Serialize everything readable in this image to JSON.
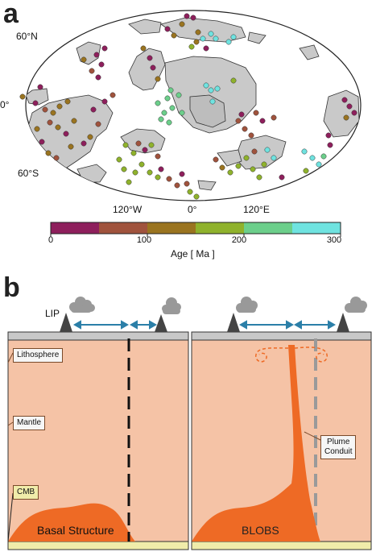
{
  "panel_a": {
    "letter": "a",
    "lat_labels": [
      "60°N",
      "0°",
      "60°S"
    ],
    "lon_labels": [
      "120°W",
      "0°",
      "120°E"
    ],
    "colorbar": {
      "ticks": [
        "0",
        "100",
        "200",
        "300"
      ],
      "title": "Age [ Ma ]",
      "colors": [
        "#8e1f5c",
        "#a0533d",
        "#9a7420",
        "#8fb22c",
        "#6ccf8b",
        "#6fe3e0"
      ]
    },
    "land_color": "#c9c9c9",
    "ocean_color": "#ffffff"
  },
  "panel_b": {
    "letter": "b",
    "lip_label": "LIP",
    "lithosphere_label": "Lithosphere",
    "mantle_label": "Mantle",
    "cmb_label": "CMB",
    "basal_label": "Basal Structure",
    "blobs_label": "BLOBS",
    "plume_label_line1": "Plume",
    "plume_label_line2": "Conduit",
    "mantle_color": "#f5c3a6",
    "plume_color": "#ee6a25",
    "arrow_color": "#2b7fa8"
  }
}
